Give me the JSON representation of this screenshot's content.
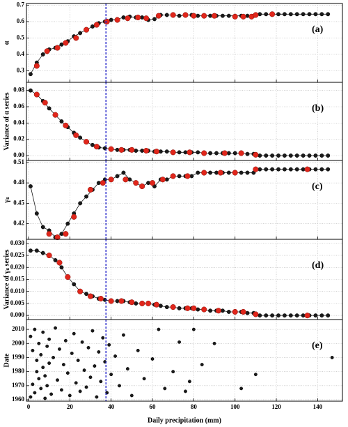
{
  "x_axis": {
    "label": "Daily precipitation (mm)",
    "xlim": [
      -1,
      152
    ],
    "xticks": [
      0,
      20,
      40,
      60,
      80,
      100,
      120,
      140
    ]
  },
  "reference_line": {
    "x": 37.5,
    "color": "#1c1cc8"
  },
  "chart_data": [
    {
      "type": "line",
      "label": "(a)",
      "ylabel": "α",
      "ylim": [
        0.23,
        0.71
      ],
      "yticks": [
        0.3,
        0.4,
        0.5,
        0.6,
        0.7
      ],
      "grid": true,
      "series": [
        {
          "color": "#1a1a1a",
          "connect": true,
          "x": [
            1,
            4,
            7,
            10,
            13,
            16,
            19,
            22,
            25,
            28,
            31,
            34,
            37,
            40,
            43,
            46,
            49,
            52,
            55,
            58,
            61,
            64,
            67,
            70,
            73,
            76,
            79,
            82,
            85,
            88,
            91,
            94,
            97,
            100,
            103,
            106,
            109,
            112,
            115,
            118,
            121,
            124,
            127,
            130,
            133,
            136,
            139,
            142,
            145
          ],
          "values": [
            0.28,
            0.35,
            0.4,
            0.43,
            0.44,
            0.46,
            0.48,
            0.51,
            0.53,
            0.55,
            0.57,
            0.59,
            0.6,
            0.61,
            0.615,
            0.625,
            0.63,
            0.625,
            0.625,
            0.61,
            0.615,
            0.64,
            0.64,
            0.64,
            0.635,
            0.64,
            0.64,
            0.635,
            0.635,
            0.635,
            0.635,
            0.635,
            0.635,
            0.635,
            0.635,
            0.635,
            0.635,
            0.645,
            0.645,
            0.645,
            0.645,
            0.645,
            0.645,
            0.645,
            0.645,
            0.645,
            0.645,
            0.645,
            0.645
          ]
        },
        {
          "color": "#e0261b",
          "connect": false,
          "x": [
            4,
            9,
            14,
            18,
            23,
            28,
            33,
            38,
            43,
            48,
            53,
            57,
            63,
            70,
            76,
            80,
            85,
            90,
            100,
            104,
            108,
            110,
            118
          ],
          "values": [
            0.33,
            0.42,
            0.44,
            0.47,
            0.5,
            0.55,
            0.58,
            0.6,
            0.61,
            0.62,
            0.625,
            0.62,
            0.635,
            0.64,
            0.64,
            0.635,
            0.635,
            0.635,
            0.63,
            0.63,
            0.63,
            0.64,
            0.645
          ]
        }
      ]
    },
    {
      "type": "line",
      "label": "(b)",
      "ylabel": "Variance of α series",
      "ylim": [
        -0.006,
        0.09
      ],
      "yticks": [
        {
          "value": 0,
          "label": "0.00"
        },
        0.02,
        0.04,
        0.06,
        0.08
      ],
      "grid": true,
      "series": [
        {
          "color": "#1a1a1a",
          "connect": true,
          "x": [
            1,
            4,
            7,
            10,
            13,
            16,
            19,
            22,
            25,
            28,
            31,
            34,
            37,
            40,
            43,
            46,
            49,
            52,
            55,
            58,
            61,
            64,
            67,
            70,
            73,
            76,
            79,
            82,
            85,
            88,
            91,
            94,
            97,
            100,
            103,
            106,
            109,
            112,
            115,
            118,
            121,
            124,
            127,
            130,
            133,
            136,
            139,
            142,
            145
          ],
          "values": [
            0.08,
            0.075,
            0.067,
            0.058,
            0.05,
            0.042,
            0.035,
            0.028,
            0.022,
            0.017,
            0.013,
            0.01,
            0.009,
            0.008,
            0.007,
            0.007,
            0.007,
            0.006,
            0.006,
            0.006,
            0.005,
            0.005,
            0.005,
            0.004,
            0.004,
            0.004,
            0.004,
            0.004,
            0.003,
            0.003,
            0.003,
            0.003,
            0.003,
            0.003,
            0.003,
            0.002,
            0.002,
            0,
            0,
            0,
            0,
            0,
            0,
            0,
            0,
            0,
            0,
            0,
            0
          ]
        },
        {
          "color": "#e0261b",
          "connect": false,
          "x": [
            4,
            8,
            13,
            18,
            23,
            28,
            33,
            40,
            45,
            50,
            57,
            62,
            70,
            78,
            85,
            95,
            103,
            110
          ],
          "values": [
            0.075,
            0.065,
            0.05,
            0.037,
            0.025,
            0.017,
            0.011,
            0.008,
            0.007,
            0.007,
            0.006,
            0.005,
            0.004,
            0.004,
            0.003,
            0.003,
            0.003,
            0.001
          ]
        }
      ]
    },
    {
      "type": "line",
      "label": "(c)",
      "ylabel": "γₛ",
      "ylim": [
        0.397,
        0.513
      ],
      "yticks": [
        0.42,
        0.45,
        0.48,
        0.51
      ],
      "grid": true,
      "series": [
        {
          "color": "#1a1a1a",
          "connect": true,
          "x": [
            1,
            4,
            7,
            10,
            13,
            16,
            19,
            22,
            25,
            28,
            31,
            34,
            37,
            40,
            43,
            46,
            49,
            52,
            55,
            58,
            61,
            64,
            67,
            70,
            73,
            76,
            79,
            82,
            85,
            88,
            91,
            94,
            97,
            100,
            103,
            106,
            109,
            112,
            115,
            118,
            121,
            124,
            127,
            130,
            133,
            136,
            139,
            142,
            145
          ],
          "values": [
            0.475,
            0.435,
            0.415,
            0.41,
            0.4,
            0.405,
            0.42,
            0.435,
            0.45,
            0.46,
            0.47,
            0.48,
            0.485,
            0.485,
            0.49,
            0.495,
            0.485,
            0.48,
            0.475,
            0.48,
            0.475,
            0.485,
            0.485,
            0.49,
            0.49,
            0.49,
            0.49,
            0.495,
            0.495,
            0.495,
            0.495,
            0.495,
            0.495,
            0.495,
            0.495,
            0.495,
            0.495,
            0.5,
            0.5,
            0.5,
            0.5,
            0.5,
            0.5,
            0.5,
            0.5,
            0.5,
            0.5,
            0.5,
            0.5
          ]
        },
        {
          "color": "#e0261b",
          "connect": false,
          "x": [
            10,
            14,
            18,
            22,
            30,
            36,
            40,
            47,
            52,
            55,
            60,
            65,
            70,
            77,
            85,
            93,
            100,
            110,
            135
          ],
          "values": [
            0.405,
            0.4,
            0.405,
            0.43,
            0.47,
            0.48,
            0.485,
            0.485,
            0.48,
            0.475,
            0.48,
            0.485,
            0.49,
            0.49,
            0.495,
            0.495,
            0.495,
            0.5,
            0.5
          ]
        }
      ]
    },
    {
      "type": "line",
      "label": "(d)",
      "ylabel": "Variance of γₛ series",
      "ylim": [
        -0.0017,
        0.0317
      ],
      "yticks": [
        {
          "value": 0,
          "label": "0.000"
        },
        0.005,
        {
          "value": 0.01,
          "label": "0.010"
        },
        0.015,
        {
          "value": 0.02,
          "label": "0.020"
        },
        0.025,
        {
          "value": 0.03,
          "label": "0.030"
        }
      ],
      "grid": true,
      "series": [
        {
          "color": "#1a1a1a",
          "connect": true,
          "x": [
            1,
            4,
            7,
            10,
            13,
            16,
            19,
            22,
            25,
            28,
            31,
            34,
            37,
            40,
            43,
            46,
            49,
            52,
            55,
            58,
            61,
            64,
            67,
            70,
            73,
            76,
            79,
            82,
            85,
            88,
            91,
            94,
            97,
            100,
            103,
            106,
            109,
            112,
            115,
            118,
            121,
            124,
            127,
            130,
            133,
            136,
            139,
            142,
            145
          ],
          "values": [
            0.027,
            0.027,
            0.026,
            0.025,
            0.023,
            0.02,
            0.016,
            0.013,
            0.01,
            0.009,
            0.008,
            0.007,
            0.0065,
            0.006,
            0.006,
            0.006,
            0.0055,
            0.005,
            0.005,
            0.005,
            0.0045,
            0.004,
            0.0035,
            0.0035,
            0.003,
            0.003,
            0.003,
            0.0025,
            0.0025,
            0.002,
            0.002,
            0.002,
            0.0015,
            0.0015,
            0.0015,
            0.001,
            0.001,
            0,
            0,
            0,
            0,
            0,
            0,
            0,
            0,
            0,
            0,
            0,
            0
          ]
        },
        {
          "color": "#e0261b",
          "connect": false,
          "x": [
            10,
            15,
            19,
            25,
            30,
            35,
            40,
            45,
            50,
            55,
            58,
            62,
            70,
            77,
            80,
            85,
            92,
            100,
            104,
            110,
            135
          ],
          "values": [
            0.025,
            0.022,
            0.016,
            0.01,
            0.008,
            0.007,
            0.006,
            0.006,
            0.0055,
            0.005,
            0.005,
            0.0045,
            0.0035,
            0.003,
            0.003,
            0.0025,
            0.002,
            0.0015,
            0.0015,
            0.0005,
            0
          ]
        }
      ]
    },
    {
      "type": "scatter",
      "label": "(e)",
      "ylabel": "Date",
      "ylim": [
        1959,
        2017
      ],
      "yticks": [
        1960,
        1970,
        1980,
        1990,
        2000,
        2010
      ],
      "grid": true,
      "series": [
        {
          "color": "#1a1a1a",
          "connect": false,
          "x": [
            1,
            1,
            2,
            2,
            3,
            3,
            4,
            4,
            5,
            5,
            6,
            6,
            7,
            7,
            8,
            8,
            9,
            9,
            10,
            10,
            11,
            12,
            13,
            14,
            15,
            16,
            17,
            18,
            19,
            20,
            21,
            22,
            23,
            24,
            25,
            26,
            27,
            28,
            29,
            30,
            31,
            32,
            33,
            34,
            35,
            36,
            37,
            38,
            39,
            40,
            42,
            44,
            46,
            48,
            50,
            53,
            56,
            60,
            63,
            66,
            70,
            73,
            76,
            78,
            80,
            84,
            90,
            103,
            110,
            147
          ],
          "values": [
            1962,
            2005,
            1971,
            1995,
            1965,
            2010,
            1980,
            1988,
            1975,
            2000,
            1968,
            1992,
            1983,
            2008,
            1961,
            1977,
            1998,
            1970,
            1986,
            2003,
            1964,
            1990,
            2011,
            1974,
            1996,
            1967,
            1985,
            2002,
            1979,
            1963,
            1993,
            2007,
            1972,
            1988,
            1966,
            2001,
            1981,
            1969,
            1997,
            1976,
            2009,
            1984,
            1962,
            1994,
            1973,
            2004,
            1987,
            1965,
            1999,
            1978,
            1991,
            1970,
            2006,
            1982,
            1963,
            1995,
            1975,
            1989,
            2010,
            1968,
            1980,
            2001,
            1966,
            1973,
            2010,
            1985,
            2000,
            1968,
            1978,
            1990
          ]
        }
      ]
    }
  ]
}
